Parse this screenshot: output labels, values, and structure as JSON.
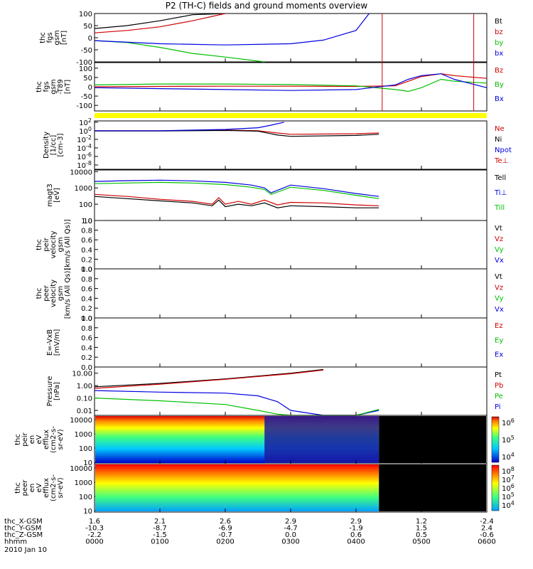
{
  "title": "P2 (TH-C) fields and ground moments overview",
  "chart_data": [
    {
      "type": "line",
      "ylabel": [
        "thc",
        "fgs",
        "gsm",
        "[nT]"
      ],
      "ylim": [
        -100,
        100
      ],
      "yticks": [
        "100",
        "50",
        "0",
        "-50",
        "-100"
      ],
      "legend": [
        {
          "name": "Bt",
          "color": "#000000"
        },
        {
          "name": "bz",
          "color": "#d00000"
        },
        {
          "name": "by",
          "color": "#00c000"
        },
        {
          "name": "bx",
          "color": "#0000e0"
        }
      ],
      "series": [
        {
          "name": "Bt",
          "color": "#000000",
          "x": [
            0.0,
            0.5,
            1.0,
            1.5,
            2.0
          ],
          "y": [
            38,
            50,
            70,
            95,
            100
          ]
        },
        {
          "name": "bz",
          "color": "#d00000",
          "x": [
            0.0,
            0.5,
            1.0,
            1.5,
            2.0
          ],
          "y": [
            20,
            30,
            45,
            70,
            100
          ]
        },
        {
          "name": "by",
          "color": "#00c000",
          "x": [
            0.0,
            0.5,
            1.0,
            1.5,
            2.0,
            2.6
          ],
          "y": [
            -12,
            -20,
            -40,
            -65,
            -80,
            -100
          ]
        },
        {
          "name": "bx",
          "color": "#0000e0",
          "x": [
            0.0,
            1.0,
            2.0,
            3.0,
            3.5,
            4.0,
            4.2
          ],
          "y": [
            -12,
            -25,
            -30,
            -25,
            -10,
            30,
            100
          ]
        }
      ]
    },
    {
      "type": "line",
      "ylabel": [
        "thc",
        "fgs",
        "gsm",
        "-T89",
        "[nT]"
      ],
      "ylim": [
        -130,
        130
      ],
      "yticks": [
        "100",
        "50",
        "0",
        "-50",
        "-100"
      ],
      "legend": [
        {
          "name": "Bz",
          "color": "#d00000"
        },
        {
          "name": "By",
          "color": "#00c000"
        },
        {
          "name": "Bx",
          "color": "#0000e0"
        }
      ],
      "series": [
        {
          "name": "Bz",
          "color": "#d00000",
          "x": [
            0.0,
            1.0,
            2.0,
            3.0,
            4.0,
            4.6,
            4.8,
            5.0,
            5.3,
            5.5,
            6.0
          ],
          "y": [
            0,
            2,
            3,
            3,
            2,
            5,
            30,
            55,
            70,
            60,
            45
          ]
        },
        {
          "name": "By",
          "color": "#00c000",
          "x": [
            0.0,
            1.0,
            2.0,
            3.0,
            4.0,
            4.6,
            4.8,
            5.0,
            5.3,
            5.5,
            6.0
          ],
          "y": [
            10,
            15,
            15,
            12,
            5,
            -15,
            -25,
            -5,
            40,
            30,
            20
          ]
        },
        {
          "name": "Bx",
          "color": "#0000e0",
          "x": [
            0.0,
            1.0,
            2.0,
            3.0,
            4.0,
            4.6,
            4.8,
            5.0,
            5.3,
            5.5,
            6.0
          ],
          "y": [
            -5,
            -10,
            -15,
            -20,
            -15,
            10,
            40,
            60,
            70,
            40,
            -5
          ]
        }
      ]
    },
    {
      "type": "line",
      "ylabel": [
        "Density",
        "[1/cc]",
        "[cm-3]"
      ],
      "yscale": "log",
      "yticks": [
        "10^2",
        "10^0",
        "10^-2",
        "10^-4",
        "10^-6",
        "10^-8"
      ],
      "legend": [
        {
          "name": "Ne",
          "color": "#d00000"
        },
        {
          "name": "Ni",
          "color": "#000000"
        },
        {
          "name": "Npot",
          "color": "#0000e0"
        },
        {
          "name": "Te⊥",
          "color": "#d00000"
        }
      ],
      "series": [
        {
          "name": "Ne",
          "color": "#d00000",
          "x": [
            0.0,
            1.0,
            2.0,
            2.5,
            2.8,
            3.0,
            4.0,
            4.35
          ],
          "y": [
            1.0,
            1.0,
            1.5,
            1.0,
            0.3,
            0.15,
            0.2,
            0.3
          ]
        },
        {
          "name": "Ni",
          "color": "#000000",
          "x": [
            0.0,
            1.0,
            2.0,
            2.5,
            2.8,
            3.0,
            4.0,
            4.35
          ],
          "y": [
            0.9,
            0.9,
            1.2,
            0.8,
            0.1,
            0.05,
            0.08,
            0.15
          ]
        },
        {
          "name": "Npot",
          "color": "#0000e0",
          "x": [
            0.0,
            1.0,
            2.0,
            2.5,
            2.7,
            2.9
          ],
          "y": [
            1.0,
            1.0,
            2.0,
            5.0,
            20.0,
            100.0
          ]
        }
      ]
    },
    {
      "type": "line",
      "ylabel": [
        "magt3",
        "[eV]"
      ],
      "yscale": "log",
      "yticks": [
        "10000",
        "1000",
        "100",
        "10"
      ],
      "legend": [
        {
          "name": "Tell",
          "color": "#000000"
        },
        {
          "name": "Ti⊥",
          "color": "#0000e0"
        },
        {
          "name": "Till",
          "color": "#00c000"
        }
      ],
      "series": [
        {
          "name": "Ti⊥",
          "color": "#0000e0",
          "x": [
            0.0,
            0.5,
            1.0,
            1.5,
            2.0,
            2.4,
            2.6,
            2.7,
            3.0,
            3.5,
            4.0,
            4.35
          ],
          "y": [
            2500,
            2800,
            3000,
            2700,
            2200,
            1500,
            1000,
            500,
            1500,
            900,
            450,
            300
          ]
        },
        {
          "name": "Till",
          "color": "#00c000",
          "x": [
            0.0,
            0.5,
            1.0,
            1.5,
            2.0,
            2.4,
            2.6,
            2.7,
            3.0,
            3.5,
            4.0,
            4.35
          ],
          "y": [
            1800,
            2000,
            2200,
            2000,
            1600,
            1100,
            800,
            400,
            1100,
            700,
            350,
            220
          ]
        },
        {
          "name": "Te⊥",
          "color": "#d00000",
          "x": [
            0.0,
            0.5,
            1.0,
            1.5,
            1.8,
            1.9,
            2.0,
            2.2,
            2.4,
            2.6,
            2.8,
            3.0,
            3.5,
            4.0,
            4.35
          ],
          "y": [
            400,
            300,
            200,
            150,
            100,
            250,
            100,
            150,
            100,
            180,
            90,
            130,
            120,
            90,
            80
          ]
        },
        {
          "name": "Tell",
          "color": "#000000",
          "x": [
            0.0,
            0.5,
            1.0,
            1.5,
            1.8,
            1.9,
            2.0,
            2.2,
            2.4,
            2.6,
            2.8,
            3.0,
            3.5,
            4.0,
            4.35
          ],
          "y": [
            300,
            220,
            160,
            120,
            80,
            180,
            70,
            100,
            80,
            120,
            60,
            80,
            70,
            60,
            60
          ]
        }
      ]
    },
    {
      "type": "line",
      "ylabel": [
        "thc",
        "peir",
        "velocity",
        "gsm",
        "[km/s (All Qs)]"
      ],
      "ylim": [
        0,
        1
      ],
      "yticks": [
        "1.0",
        "0.8",
        "0.6",
        "0.4",
        "0.2",
        "0.0"
      ],
      "legend": [
        {
          "name": "Vt",
          "color": "#000000"
        },
        {
          "name": "Vz",
          "color": "#d00000"
        },
        {
          "name": "Vy",
          "color": "#00c000"
        },
        {
          "name": "Vx",
          "color": "#0000e0"
        }
      ],
      "series": []
    },
    {
      "type": "line",
      "ylabel": [
        "thc",
        "peer",
        "velocity",
        "gsm",
        "[km/s (All Qs)]"
      ],
      "ylim": [
        0,
        1
      ],
      "yticks": [
        "1.0",
        "0.8",
        "0.6",
        "0.4",
        "0.2",
        "0.0"
      ],
      "legend": [
        {
          "name": "Vt",
          "color": "#000000"
        },
        {
          "name": "Vz",
          "color": "#d00000"
        },
        {
          "name": "Vy",
          "color": "#00c000"
        },
        {
          "name": "Vx",
          "color": "#0000e0"
        }
      ],
      "series": []
    },
    {
      "type": "line",
      "ylabel": [
        "E=-VxB",
        "[mV/m]"
      ],
      "ylim": [
        0,
        1
      ],
      "yticks": [
        "1.0",
        "0.8",
        "0.6",
        "0.4",
        "0.2",
        "0.0"
      ],
      "legend": [
        {
          "name": "Ez",
          "color": "#d00000"
        },
        {
          "name": "Ey",
          "color": "#00c000"
        },
        {
          "name": "Ex",
          "color": "#0000e0"
        }
      ],
      "series": []
    },
    {
      "type": "line",
      "ylabel": [
        "Pressure",
        "[nPa]"
      ],
      "yscale": "log",
      "yticks": [
        "10.00",
        "1.00",
        "0.10",
        "0.01"
      ],
      "legend": [
        {
          "name": "Pt",
          "color": "#000000"
        },
        {
          "name": "Pb",
          "color": "#d00000"
        },
        {
          "name": "Pe",
          "color": "#00c000"
        },
        {
          "name": "Pi",
          "color": "#0000e0"
        }
      ],
      "series": [
        {
          "name": "Pt",
          "color": "#000000",
          "x": [
            0.0,
            1.0,
            2.0,
            3.0,
            3.5
          ],
          "y": [
            0.8,
            1.5,
            3.5,
            10,
            20
          ]
        },
        {
          "name": "Pb",
          "color": "#d00000",
          "x": [
            0.0,
            1.0,
            2.0,
            3.0,
            3.5
          ],
          "y": [
            0.6,
            1.3,
            3.2,
            9,
            18
          ]
        },
        {
          "name": "Pi",
          "color": "#0000e0",
          "x": [
            0.0,
            1.0,
            2.0,
            2.5,
            2.8,
            3.0,
            3.5,
            4.0,
            4.35
          ],
          "y": [
            0.4,
            0.3,
            0.25,
            0.15,
            0.05,
            0.01,
            0.003,
            0.004,
            0.01
          ]
        },
        {
          "name": "Pe",
          "color": "#00c000",
          "x": [
            0.0,
            1.0,
            2.0,
            2.5,
            2.8,
            3.0,
            3.5,
            4.0,
            4.35
          ],
          "y": [
            0.1,
            0.06,
            0.03,
            0.01,
            0.005,
            0.003,
            0.002,
            0.004,
            0.012
          ]
        }
      ]
    },
    {
      "type": "heatmap",
      "ylabel": [
        "thc",
        "peir",
        "en",
        "eV",
        "efflux",
        "(cm2-s-",
        "sr-eV)"
      ],
      "yscale": "log",
      "yticks": [
        "10000",
        "1000",
        "100",
        "10"
      ],
      "colorbar_ticks": [
        "10^6",
        "10^5",
        "10^4"
      ]
    },
    {
      "type": "heatmap",
      "ylabel": [
        "thc",
        "peer",
        "en",
        "eV",
        "efflux",
        "(cm2-s-",
        "sr-eV)"
      ],
      "yscale": "log",
      "yticks": [
        "10000",
        "1000",
        "100",
        "10"
      ],
      "colorbar_ticks": [
        "10^8",
        "10^7",
        "10^6",
        "10^5",
        "10^4"
      ]
    }
  ],
  "xaxis": {
    "rows": [
      {
        "label": "thc_X-GSM",
        "values": [
          "1.6",
          "2.1",
          "2.6",
          "2.9",
          "2.9",
          "1.2",
          "-2.4"
        ]
      },
      {
        "label": "thc_Y-GSM",
        "values": [
          "-10.3",
          "-8.7",
          "-6.9",
          "-4.7",
          "-1.9",
          "1.5",
          "2.4"
        ]
      },
      {
        "label": "thc_Z-GSM",
        "values": [
          "-2.2",
          "-1.5",
          "-0.7",
          "0.0",
          "0.6",
          "0.5",
          "-0.6"
        ]
      },
      {
        "label": "hhmm",
        "values": [
          "0000",
          "0100",
          "0200",
          "0300",
          "0400",
          "0500",
          "0600"
        ]
      }
    ],
    "date": "2010 Jan 10"
  }
}
